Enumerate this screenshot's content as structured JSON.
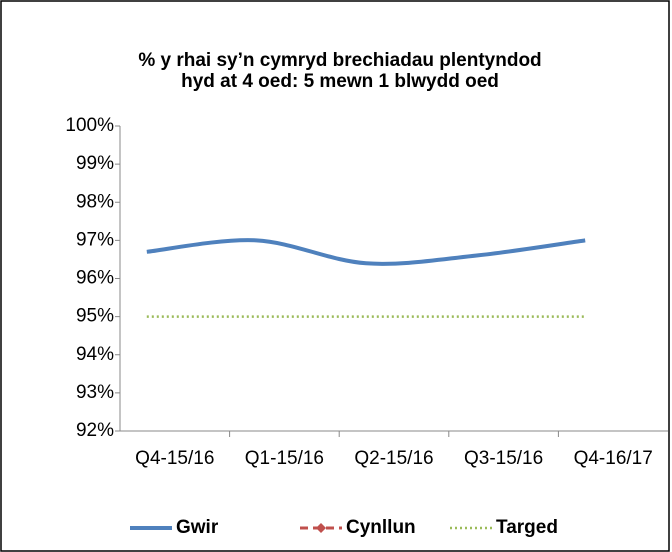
{
  "chart_data": {
    "type": "line",
    "title": [
      "% y rhai sy’n cymryd brechiadau plentyndod",
      "hyd at 4 oed: 5 mewn 1 blwydd oed"
    ],
    "categories": [
      "Q4-15/16",
      "Q1-15/16",
      "Q2-15/16",
      "Q3-15/16",
      "Q4-16/17"
    ],
    "series": [
      {
        "name": "Gwir",
        "color": "#4f81bd",
        "style": "solid",
        "values": [
          96.7,
          97.0,
          96.4,
          96.6,
          97.0
        ]
      },
      {
        "name": "Cynllun",
        "color": "#c0504d",
        "style": "dashed",
        "values": [
          null,
          null,
          null,
          null,
          null
        ]
      },
      {
        "name": "Targed",
        "color": "#9bbb59",
        "style": "dotted",
        "values": [
          95,
          95,
          95,
          95,
          95
        ]
      }
    ],
    "ylim": [
      92,
      100
    ],
    "yticks": [
      {
        "value": 92,
        "label": "92%"
      },
      {
        "value": 93,
        "label": "93%"
      },
      {
        "value": 94,
        "label": "94%"
      },
      {
        "value": 95,
        "label": "95%"
      },
      {
        "value": 96,
        "label": "96%"
      },
      {
        "value": 97,
        "label": "97%"
      },
      {
        "value": 98,
        "label": "98%"
      },
      {
        "value": 99,
        "label": "99%"
      },
      {
        "value": 100,
        "label": "100%"
      }
    ],
    "legend": "bottom"
  }
}
